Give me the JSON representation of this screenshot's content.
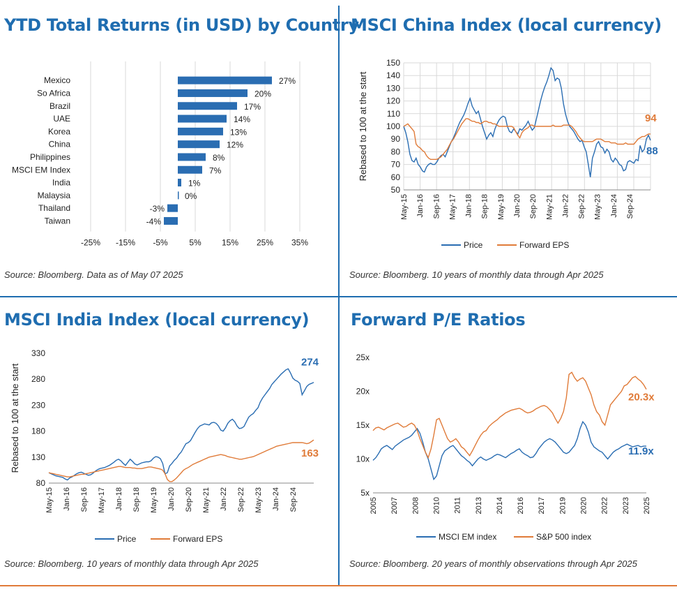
{
  "panels": {
    "p1": {
      "title": "YTD Total Returns (in USD) by Country",
      "source": "Source: Bloomberg. Data as of May 07 2025"
    },
    "p2": {
      "title": "MSCI China Index (local currency)",
      "source": "Source: Bloomberg. 10 years of monthly data through Apr 2025"
    },
    "p3": {
      "title": "MSCI India Index (local currency)",
      "source": "Source: Bloomberg. 10 years of monthly data through Apr 2025"
    },
    "p4": {
      "title": "Forward P/E Ratios",
      "source": "Source: Bloomberg. 20 years of monthly observations through Apr 2025"
    }
  },
  "colors": {
    "blue": "#2a6db2",
    "orange": "#e07b39",
    "title": "#1f6db0",
    "grid": "#d9d9d9"
  },
  "chart_data": [
    {
      "type": "bar",
      "orientation": "horizontal",
      "categories": [
        "Mexico",
        "So Africa",
        "Brazil",
        "UAE",
        "Korea",
        "China",
        "Philippines",
        "MSCI EM Index",
        "India",
        "Malaysia",
        "Thailand",
        "Taiwan"
      ],
      "values": [
        27,
        20,
        17,
        14,
        13,
        12,
        8,
        7,
        1,
        0,
        -3,
        -4
      ],
      "value_labels": [
        "27%",
        "20%",
        "17%",
        "14%",
        "13%",
        "12%",
        "8%",
        "7%",
        "1%",
        "0%",
        "-3%",
        "-4%"
      ],
      "xlim": [
        -30,
        40
      ],
      "xticks": [
        -25,
        -15,
        -5,
        5,
        15,
        25,
        35
      ],
      "xtick_labels": [
        "-25%",
        "-15%",
        "-5%",
        "5%",
        "15%",
        "25%",
        "35%"
      ],
      "grid": true
    },
    {
      "type": "line",
      "ylabel": "Rebased to 100 at the start",
      "ylim": [
        50,
        150
      ],
      "yticks": [
        50,
        60,
        70,
        80,
        90,
        100,
        110,
        120,
        130,
        140,
        150
      ],
      "ytick_labels": [
        "50",
        "60",
        "70",
        "80",
        "90",
        "100",
        "110",
        "120",
        "130",
        "140",
        "150"
      ],
      "xtick_labels": [
        "May-15",
        "Jan-16",
        "Sep-16",
        "May-17",
        "Jan-18",
        "Sep-18",
        "May-19",
        "Jan-20",
        "Sep-20",
        "May-21",
        "Jan-22",
        "Sep-22",
        "May-23",
        "Jan-24",
        "Sep-24"
      ],
      "grid": true,
      "legend": "bottom",
      "series": [
        {
          "name": "Price",
          "color": "#2a6db2",
          "end_label": "88",
          "values": [
            100,
            95,
            88,
            78,
            73,
            72,
            75,
            70,
            68,
            65,
            64,
            68,
            70,
            71,
            70,
            70,
            72,
            75,
            77,
            78,
            76,
            80,
            84,
            88,
            91,
            95,
            99,
            103,
            106,
            109,
            113,
            118,
            122,
            116,
            113,
            110,
            112,
            106,
            100,
            95,
            90,
            93,
            95,
            92,
            98,
            102,
            105,
            107,
            108,
            107,
            100,
            96,
            95,
            98,
            96,
            94,
            98,
            97,
            99,
            101,
            104,
            100,
            97,
            99,
            106,
            113,
            120,
            126,
            131,
            135,
            140,
            146,
            144,
            136,
            138,
            137,
            130,
            118,
            110,
            104,
            100,
            98,
            96,
            93,
            90,
            88,
            89,
            84,
            80,
            70,
            60,
            75,
            80,
            86,
            88,
            84,
            83,
            79,
            82,
            80,
            74,
            72,
            75,
            73,
            70,
            69,
            65,
            66,
            72,
            73,
            72,
            71,
            74,
            73,
            85,
            80,
            82,
            90,
            93,
            89
          ]
        },
        {
          "name": "Forward EPS",
          "color": "#e07b39",
          "end_label": "94",
          "values": [
            100,
            101,
            102,
            100,
            98,
            96,
            86,
            84,
            83,
            81,
            80,
            77,
            75,
            74,
            74,
            74,
            74,
            75,
            76,
            78,
            80,
            82,
            85,
            88,
            90,
            93,
            96,
            99,
            102,
            104,
            106,
            106,
            105,
            104,
            104,
            103,
            103,
            102,
            103,
            104,
            104,
            103,
            103,
            102,
            102,
            101,
            100,
            100,
            100,
            100,
            100,
            100,
            100,
            99,
            96,
            93,
            91,
            95,
            97,
            98,
            99,
            101,
            101,
            100,
            100,
            100,
            100,
            100,
            100,
            100,
            100,
            100,
            101,
            100,
            100,
            100,
            100,
            101,
            101,
            101,
            101,
            100,
            98,
            96,
            93,
            91,
            89,
            88,
            88,
            88,
            88,
            88,
            89,
            90,
            90,
            90,
            89,
            88,
            88,
            88,
            87,
            87,
            87,
            86,
            86,
            86,
            86,
            87,
            86,
            86,
            86,
            86,
            88,
            90,
            91,
            92,
            92,
            93,
            94,
            94
          ]
        }
      ]
    },
    {
      "type": "line",
      "ylabel": "Rebased to 100 at the start",
      "ylim": [
        80,
        330
      ],
      "yticks": [
        80,
        130,
        180,
        230,
        280,
        330
      ],
      "ytick_labels": [
        "80",
        "130",
        "180",
        "230",
        "280",
        "330"
      ],
      "xtick_labels": [
        "May-15",
        "Jan-16",
        "Sep-16",
        "May-17",
        "Jan-18",
        "Sep-18",
        "May-19",
        "Jan-20",
        "Sep-20",
        "May-21",
        "Jan-22",
        "Sep-22",
        "May-23",
        "Jan-24",
        "Sep-24"
      ],
      "grid": false,
      "legend": "bottom",
      "series": [
        {
          "name": "Price",
          "color": "#2a6db2",
          "end_label": "274",
          "values": [
            100,
            98,
            96,
            94,
            93,
            92,
            91,
            88,
            86,
            90,
            92,
            95,
            98,
            100,
            101,
            99,
            97,
            95,
            96,
            99,
            103,
            106,
            108,
            109,
            110,
            112,
            114,
            117,
            120,
            124,
            126,
            123,
            118,
            114,
            120,
            126,
            122,
            117,
            115,
            117,
            119,
            120,
            121,
            121,
            123,
            128,
            131,
            130,
            127,
            118,
            98,
            100,
            113,
            118,
            124,
            128,
            135,
            140,
            148,
            156,
            158,
            162,
            170,
            178,
            185,
            190,
            192,
            194,
            193,
            192,
            196,
            197,
            195,
            190,
            182,
            180,
            186,
            195,
            200,
            203,
            198,
            190,
            185,
            186,
            189,
            198,
            207,
            211,
            214,
            220,
            225,
            236,
            244,
            250,
            256,
            262,
            270,
            275,
            280,
            285,
            290,
            294,
            298,
            300,
            292,
            282,
            278,
            276,
            272,
            250,
            258,
            266,
            270,
            272,
            274
          ]
        },
        {
          "name": "Forward EPS",
          "color": "#e07b39",
          "end_label": "163",
          "values": [
            100,
            99,
            98,
            97,
            96,
            95,
            94,
            93,
            92,
            92,
            93,
            94,
            95,
            96,
            97,
            97,
            98,
            99,
            100,
            101,
            102,
            103,
            104,
            105,
            106,
            107,
            108,
            109,
            110,
            111,
            112,
            112,
            111,
            110,
            110,
            110,
            109,
            109,
            108,
            108,
            108,
            109,
            110,
            111,
            111,
            110,
            109,
            108,
            107,
            105,
            98,
            87,
            83,
            83,
            86,
            90,
            95,
            100,
            105,
            108,
            110,
            113,
            116,
            118,
            120,
            122,
            124,
            126,
            128,
            130,
            131,
            132,
            133,
            134,
            135,
            134,
            133,
            131,
            130,
            129,
            128,
            127,
            126,
            126,
            127,
            128,
            129,
            130,
            131,
            133,
            135,
            137,
            139,
            141,
            143,
            145,
            147,
            149,
            151,
            152,
            153,
            154,
            155,
            156,
            157,
            158,
            158,
            158,
            158,
            158,
            157,
            156,
            157,
            160,
            163
          ]
        }
      ]
    },
    {
      "type": "line",
      "ylim": [
        5,
        25
      ],
      "yticks": [
        5,
        10,
        15,
        20,
        25
      ],
      "ytick_labels": [
        "5x",
        "10x",
        "15x",
        "20x",
        "25x"
      ],
      "xtick_labels": [
        "2005",
        "2007",
        "2008",
        "2010",
        "2011",
        "2013",
        "2014",
        "2016",
        "2017",
        "2019",
        "2020",
        "2022",
        "2023",
        "2025"
      ],
      "grid": false,
      "legend": "bottom",
      "series": [
        {
          "name": "MSCI EM index",
          "color": "#2a6db2",
          "end_label": "11.9x",
          "values": [
            9.8,
            10.2,
            10.8,
            11.5,
            11.8,
            12.0,
            11.7,
            11.4,
            11.9,
            12.2,
            12.5,
            12.8,
            13.0,
            13.2,
            13.5,
            14.0,
            14.5,
            13.8,
            12.5,
            11.0,
            10.0,
            8.5,
            7.0,
            7.5,
            9.0,
            10.5,
            11.2,
            11.5,
            11.8,
            12.0,
            11.5,
            11.0,
            10.5,
            10.2,
            9.8,
            9.5,
            9.0,
            9.5,
            10.0,
            10.3,
            10.0,
            9.8,
            10.0,
            10.2,
            10.5,
            10.7,
            10.6,
            10.4,
            10.2,
            10.5,
            10.8,
            11.0,
            11.3,
            11.5,
            11.0,
            10.7,
            10.5,
            10.2,
            10.3,
            10.8,
            11.5,
            12.0,
            12.5,
            12.8,
            13.0,
            12.8,
            12.5,
            12.0,
            11.5,
            11.0,
            10.8,
            11.0,
            11.5,
            12.0,
            13.0,
            14.5,
            15.5,
            15.0,
            14.0,
            12.5,
            11.8,
            11.5,
            11.2,
            11.0,
            10.5,
            10.0,
            10.5,
            11.0,
            11.3,
            11.5,
            11.8,
            12.0,
            12.2,
            12.0,
            11.8,
            11.9,
            12.0,
            11.8,
            11.9,
            11.9
          ]
        },
        {
          "name": "S&P 500 index",
          "color": "#e07b39",
          "end_label": "20.3x",
          "values": [
            14.2,
            14.6,
            14.7,
            14.5,
            14.3,
            14.6,
            14.8,
            15.0,
            15.2,
            15.3,
            15.0,
            14.7,
            14.8,
            15.1,
            15.3,
            15.0,
            14.2,
            13.0,
            12.0,
            11.0,
            10.2,
            11.5,
            13.5,
            15.8,
            16.0,
            15.0,
            14.0,
            13.0,
            12.5,
            12.7,
            13.0,
            12.5,
            11.8,
            11.5,
            11.0,
            10.5,
            11.2,
            12.0,
            12.8,
            13.5,
            14.0,
            14.2,
            14.8,
            15.2,
            15.5,
            15.8,
            16.2,
            16.5,
            16.8,
            17.0,
            17.2,
            17.3,
            17.4,
            17.5,
            17.3,
            17.0,
            16.8,
            16.9,
            17.1,
            17.4,
            17.6,
            17.8,
            17.9,
            17.7,
            17.3,
            16.8,
            16.0,
            15.3,
            16.0,
            17.0,
            19.0,
            22.5,
            22.8,
            22.0,
            21.5,
            21.8,
            22.0,
            21.5,
            20.5,
            19.5,
            18.0,
            17.0,
            16.5,
            15.5,
            15.0,
            16.5,
            18.0,
            18.5,
            19.0,
            19.5,
            20.0,
            20.8,
            21.0,
            21.5,
            22.0,
            22.2,
            21.8,
            21.5,
            21.0,
            20.3
          ]
        }
      ]
    }
  ]
}
